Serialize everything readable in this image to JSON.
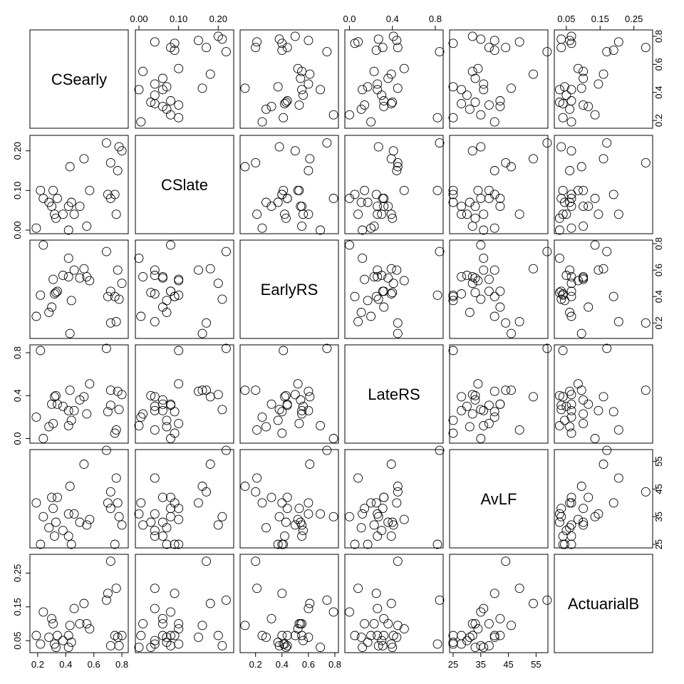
{
  "chart_data": {
    "type": "scatter-matrix",
    "variables": [
      "CSearly",
      "CSlate",
      "EarlyRS",
      "LateRS",
      "AvLF",
      "ActuarialB"
    ],
    "ranges": [
      [
        0.17,
        0.82
      ],
      [
        0.0,
        0.23
      ],
      [
        0.11,
        0.8
      ],
      [
        -0.01,
        0.84
      ],
      [
        25,
        58
      ],
      [
        0.025,
        0.295
      ]
    ],
    "ticks": [
      {
        "values": [
          0.2,
          0.4,
          0.6,
          0.8
        ],
        "labels": [
          "0.2",
          "0.4",
          "0.6",
          "0.8"
        ]
      },
      {
        "values": [
          0.0,
          0.1,
          0.2
        ],
        "labels": [
          "0.00",
          "0.10",
          "0.20"
        ]
      },
      {
        "values": [
          0.2,
          0.4,
          0.6,
          0.8
        ],
        "labels": [
          "0.2",
          "0.4",
          "0.6",
          "0.8"
        ]
      },
      {
        "values": [
          0.0,
          0.4,
          0.8
        ],
        "labels": [
          "0.0",
          "0.4",
          "0.8"
        ]
      },
      {
        "values": [
          25,
          35,
          45,
          55
        ],
        "labels": [
          "25",
          "35",
          "45",
          "55"
        ]
      },
      {
        "values": [
          0.05,
          0.15,
          0.25
        ],
        "labels": [
          "0.05",
          "0.15",
          "0.25"
        ]
      }
    ],
    "observations": [
      [
        0.19,
        0.005,
        0.25,
        0.2,
        40,
        0.065
      ],
      [
        0.22,
        0.1,
        0.41,
        0.82,
        25,
        0.04
      ],
      [
        0.24,
        0.08,
        0.79,
        0.0,
        35,
        0.135
      ],
      [
        0.28,
        0.07,
        0.28,
        0.11,
        31,
        0.06
      ],
      [
        0.3,
        0.06,
        0.32,
        0.32,
        42,
        0.115
      ],
      [
        0.31,
        0.1,
        0.53,
        0.14,
        38,
        0.1
      ],
      [
        0.32,
        0.04,
        0.42,
        0.39,
        28,
        0.04
      ],
      [
        0.33,
        0.03,
        0.43,
        0.4,
        33,
        0.03
      ],
      [
        0.34,
        0.08,
        0.44,
        0.32,
        42,
        0.065
      ],
      [
        0.38,
        0.04,
        0.56,
        0.3,
        30,
        0.05
      ],
      [
        0.42,
        0.0,
        0.69,
        0.12,
        36,
        0.03
      ],
      [
        0.42,
        0.06,
        0.55,
        0.26,
        28,
        0.065
      ],
      [
        0.43,
        0.16,
        0.12,
        0.45,
        46,
        0.095
      ],
      [
        0.44,
        0.07,
        0.37,
        0.17,
        25,
        0.045
      ],
      [
        0.46,
        0.04,
        0.6,
        0.26,
        36,
        0.145
      ],
      [
        0.5,
        0.06,
        0.54,
        0.36,
        33,
        0.1
      ],
      [
        0.53,
        0.18,
        0.61,
        0.39,
        54,
        0.16
      ],
      [
        0.55,
        0.01,
        0.55,
        0.23,
        32,
        0.1
      ],
      [
        0.57,
        0.1,
        0.52,
        0.51,
        34,
        0.085
      ],
      [
        0.69,
        0.22,
        0.74,
        0.84,
        59,
        0.17
      ],
      [
        0.7,
        0.09,
        0.4,
        0.25,
        40,
        0.19
      ],
      [
        0.72,
        0.17,
        0.2,
        0.45,
        44,
        0.285
      ],
      [
        0.72,
        0.08,
        0.44,
        0.31,
        38,
        0.035
      ],
      [
        0.75,
        0.09,
        0.4,
        0.05,
        25,
        0.065
      ],
      [
        0.76,
        0.04,
        0.21,
        0.08,
        49,
        0.205
      ],
      [
        0.77,
        0.15,
        0.6,
        0.44,
        40,
        0.06
      ],
      [
        0.78,
        0.21,
        0.38,
        0.27,
        35,
        0.035
      ],
      [
        0.8,
        0.2,
        0.5,
        0.41,
        32,
        0.065
      ]
    ]
  }
}
